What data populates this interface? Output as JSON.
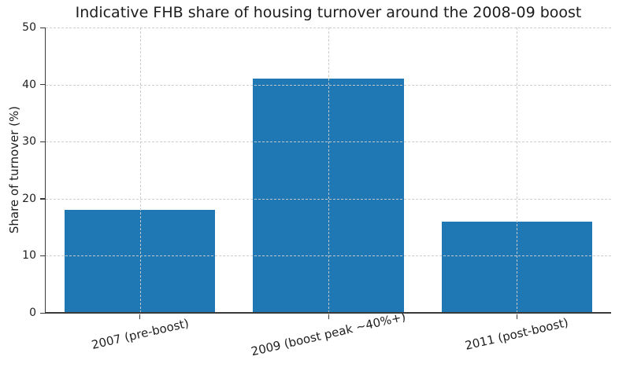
{
  "chart_data": {
    "type": "bar",
    "title": "Indicative FHB share of housing turnover around the 2008-09 boost",
    "categories": [
      "2007 (pre-boost)",
      "2009 (boost peak ~40%+)",
      "2011 (post-boost)"
    ],
    "values": [
      18,
      41,
      16
    ],
    "xlabel": "",
    "ylabel": "Share of turnover (%)",
    "ylim": [
      0,
      50
    ],
    "yticks": [
      0,
      10,
      20,
      30,
      40,
      50
    ],
    "grid": "dashed horizontal and vertical gridlines, drawn over bars",
    "legend": "none",
    "bar_color": "#1f77b4",
    "grid_color": "#cbcbcb",
    "axis_color": "#3a3a3a",
    "text_color": "#1c1c1c",
    "background_color": "#ffffff"
  }
}
